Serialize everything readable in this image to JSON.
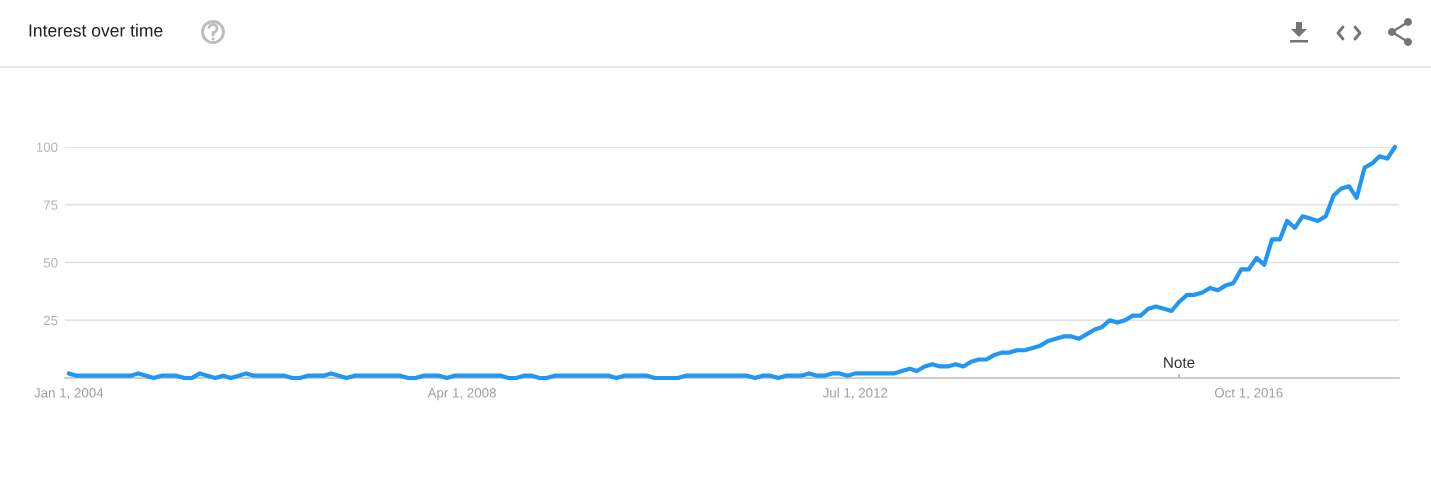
{
  "chart_data": {
    "type": "line",
    "title": "Interest over time",
    "x": [
      "2004-01",
      "2004-02",
      "2004-03",
      "2004-04",
      "2004-05",
      "2004-06",
      "2004-07",
      "2004-08",
      "2004-09",
      "2004-10",
      "2004-11",
      "2004-12",
      "2005-01",
      "2005-02",
      "2005-03",
      "2005-04",
      "2005-05",
      "2005-06",
      "2005-07",
      "2005-08",
      "2005-09",
      "2005-10",
      "2005-11",
      "2005-12",
      "2006-01",
      "2006-02",
      "2006-03",
      "2006-04",
      "2006-05",
      "2006-06",
      "2006-07",
      "2006-08",
      "2006-09",
      "2006-10",
      "2006-11",
      "2006-12",
      "2007-01",
      "2007-02",
      "2007-03",
      "2007-04",
      "2007-05",
      "2007-06",
      "2007-07",
      "2007-08",
      "2007-09",
      "2007-10",
      "2007-11",
      "2007-12",
      "2008-01",
      "2008-02",
      "2008-03",
      "2008-04",
      "2008-05",
      "2008-06",
      "2008-07",
      "2008-08",
      "2008-09",
      "2008-10",
      "2008-11",
      "2008-12",
      "2009-01",
      "2009-02",
      "2009-03",
      "2009-04",
      "2009-05",
      "2009-06",
      "2009-07",
      "2009-08",
      "2009-09",
      "2009-10",
      "2009-11",
      "2009-12",
      "2010-01",
      "2010-02",
      "2010-03",
      "2010-04",
      "2010-05",
      "2010-06",
      "2010-07",
      "2010-08",
      "2010-09",
      "2010-10",
      "2010-11",
      "2010-12",
      "2011-01",
      "2011-02",
      "2011-03",
      "2011-04",
      "2011-05",
      "2011-06",
      "2011-07",
      "2011-08",
      "2011-09",
      "2011-10",
      "2011-11",
      "2011-12",
      "2012-01",
      "2012-02",
      "2012-03",
      "2012-04",
      "2012-05",
      "2012-06",
      "2012-07",
      "2012-08",
      "2012-09",
      "2012-10",
      "2012-11",
      "2012-12",
      "2013-01",
      "2013-02",
      "2013-03",
      "2013-04",
      "2013-05",
      "2013-06",
      "2013-07",
      "2013-08",
      "2013-09",
      "2013-10",
      "2013-11",
      "2013-12",
      "2014-01",
      "2014-02",
      "2014-03",
      "2014-04",
      "2014-05",
      "2014-06",
      "2014-07",
      "2014-08",
      "2014-09",
      "2014-10",
      "2014-11",
      "2014-12",
      "2015-01",
      "2015-02",
      "2015-03",
      "2015-04",
      "2015-05",
      "2015-06",
      "2015-07",
      "2015-08",
      "2015-09",
      "2015-10",
      "2015-11",
      "2015-12",
      "2016-01",
      "2016-02",
      "2016-03",
      "2016-04",
      "2016-05",
      "2016-06",
      "2016-07",
      "2016-08",
      "2016-09",
      "2016-10",
      "2016-11",
      "2016-12",
      "2017-01",
      "2017-02",
      "2017-03",
      "2017-04",
      "2017-05",
      "2017-06",
      "2017-07",
      "2017-08",
      "2017-09",
      "2017-10",
      "2017-11",
      "2017-12",
      "2018-01",
      "2018-02",
      "2018-03",
      "2018-04",
      "2018-05"
    ],
    "series": [
      {
        "color": "#2196f3",
        "values": [
          2,
          1,
          1,
          1,
          1,
          1,
          1,
          1,
          1,
          2,
          1,
          0,
          1,
          1,
          1,
          0,
          0,
          2,
          1,
          0,
          1,
          0,
          1,
          2,
          1,
          1,
          1,
          1,
          1,
          0,
          0,
          1,
          1,
          1,
          2,
          1,
          0,
          1,
          1,
          1,
          1,
          1,
          1,
          1,
          0,
          0,
          1,
          1,
          1,
          0,
          1,
          1,
          1,
          1,
          1,
          1,
          1,
          0,
          0,
          1,
          1,
          0,
          0,
          1,
          1,
          1,
          1,
          1,
          1,
          1,
          1,
          0,
          1,
          1,
          1,
          1,
          0,
          0,
          0,
          0,
          1,
          1,
          1,
          1,
          1,
          1,
          1,
          1,
          1,
          0,
          1,
          1,
          0,
          1,
          1,
          1,
          2,
          1,
          1,
          2,
          2,
          1,
          2,
          2,
          2,
          2,
          2,
          2,
          3,
          4,
          3,
          5,
          6,
          5,
          5,
          6,
          5,
          7,
          8,
          8,
          10,
          11,
          11,
          12,
          12,
          13,
          14,
          16,
          17,
          18,
          18,
          17,
          19,
          21,
          22,
          25,
          24,
          25,
          27,
          27,
          30,
          31,
          30,
          29,
          33,
          36,
          36,
          37,
          39,
          38,
          40,
          41,
          47,
          47,
          52,
          49,
          60,
          60,
          68,
          65,
          70,
          69,
          68,
          70,
          79,
          82,
          83,
          78,
          91,
          93,
          96,
          95,
          100
        ]
      }
    ],
    "xlim": [
      "2003-12-17",
      "2018-05-17"
    ],
    "xticks": [
      {
        "value": "2004-01-01",
        "label": "Jan 1, 2004"
      },
      {
        "value": "2008-04-01",
        "label": "Apr 1, 2008"
      },
      {
        "value": "2012-07-01",
        "label": "Jul 1, 2012"
      },
      {
        "value": "2016-10-01",
        "label": "Oct 1, 2016"
      }
    ],
    "ylim": [
      0,
      100
    ],
    "yticks": [
      25,
      50,
      75,
      100
    ],
    "grid": "y",
    "annotations": [
      "Note"
    ]
  }
}
